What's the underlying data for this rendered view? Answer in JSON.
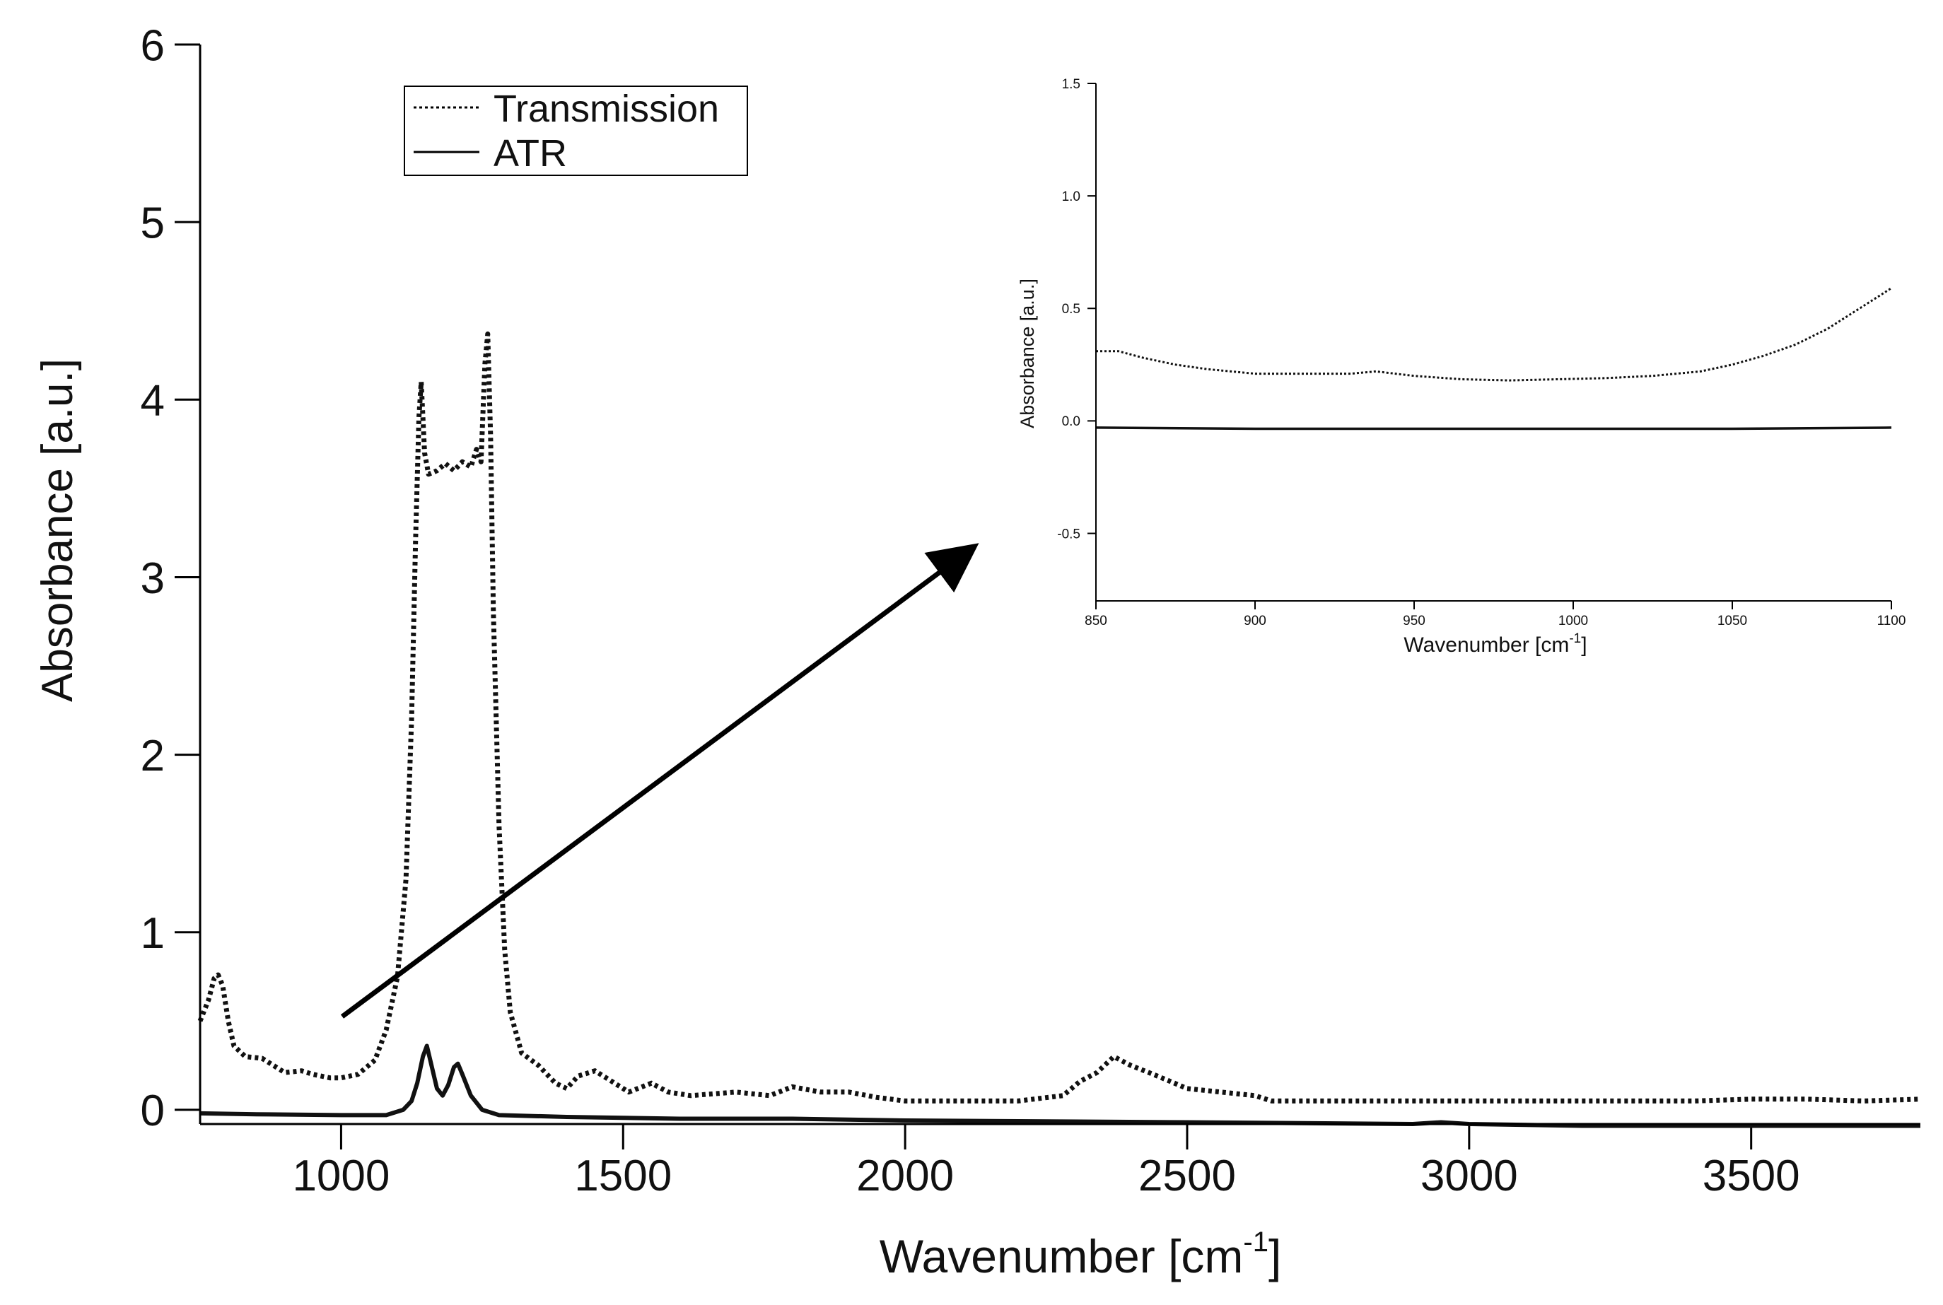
{
  "chart_data": [
    {
      "id": "main",
      "type": "line",
      "xlabel": "Wavenumber [cm",
      "xlabel_sup": "-1",
      "xlabel_suffix": "]",
      "ylabel": "Absorbance [a.u.]",
      "xlim": [
        750,
        3800
      ],
      "ylim": [
        -0.08,
        6
      ],
      "xticks": [
        1000,
        1500,
        2000,
        2500,
        3000,
        3500
      ],
      "yticks": [
        0,
        1,
        2,
        3,
        4,
        5,
        6
      ],
      "legend": {
        "placement": "top-center",
        "entries": [
          "Transmission",
          "ATR"
        ]
      },
      "series": [
        {
          "name": "Transmission",
          "style": "dotted",
          "points": [
            [
              750,
              0.5
            ],
            [
              765,
              0.62
            ],
            [
              775,
              0.74
            ],
            [
              782,
              0.76
            ],
            [
              790,
              0.7
            ],
            [
              800,
              0.5
            ],
            [
              810,
              0.36
            ],
            [
              830,
              0.3
            ],
            [
              860,
              0.29
            ],
            [
              880,
              0.25
            ],
            [
              900,
              0.21
            ],
            [
              930,
              0.22
            ],
            [
              950,
              0.2
            ],
            [
              980,
              0.18
            ],
            [
              1000,
              0.18
            ],
            [
              1030,
              0.2
            ],
            [
              1060,
              0.28
            ],
            [
              1080,
              0.45
            ],
            [
              1100,
              0.75
            ],
            [
              1115,
              1.3
            ],
            [
              1125,
              2.2
            ],
            [
              1132,
              3.2
            ],
            [
              1138,
              3.9
            ],
            [
              1142,
              4.1
            ],
            [
              1148,
              3.7
            ],
            [
              1155,
              3.58
            ],
            [
              1170,
              3.6
            ],
            [
              1185,
              3.64
            ],
            [
              1200,
              3.6
            ],
            [
              1215,
              3.65
            ],
            [
              1230,
              3.62
            ],
            [
              1240,
              3.72
            ],
            [
              1248,
              3.65
            ],
            [
              1255,
              4.2
            ],
            [
              1260,
              4.37
            ],
            [
              1265,
              3.8
            ],
            [
              1270,
              2.8
            ],
            [
              1280,
              1.6
            ],
            [
              1290,
              0.9
            ],
            [
              1300,
              0.55
            ],
            [
              1320,
              0.32
            ],
            [
              1350,
              0.25
            ],
            [
              1380,
              0.15
            ],
            [
              1400,
              0.12
            ],
            [
              1420,
              0.19
            ],
            [
              1450,
              0.22
            ],
            [
              1480,
              0.16
            ],
            [
              1510,
              0.1
            ],
            [
              1550,
              0.15
            ],
            [
              1580,
              0.1
            ],
            [
              1620,
              0.08
            ],
            [
              1700,
              0.1
            ],
            [
              1760,
              0.08
            ],
            [
              1800,
              0.13
            ],
            [
              1850,
              0.1
            ],
            [
              1900,
              0.1
            ],
            [
              1950,
              0.07
            ],
            [
              2000,
              0.05
            ],
            [
              2100,
              0.05
            ],
            [
              2200,
              0.05
            ],
            [
              2280,
              0.08
            ],
            [
              2310,
              0.16
            ],
            [
              2340,
              0.21
            ],
            [
              2370,
              0.3
            ],
            [
              2400,
              0.25
            ],
            [
              2440,
              0.2
            ],
            [
              2470,
              0.16
            ],
            [
              2500,
              0.12
            ],
            [
              2560,
              0.1
            ],
            [
              2620,
              0.08
            ],
            [
              2650,
              0.05
            ],
            [
              2800,
              0.05
            ],
            [
              3000,
              0.05
            ],
            [
              3200,
              0.05
            ],
            [
              3400,
              0.05
            ],
            [
              3500,
              0.06
            ],
            [
              3600,
              0.06
            ],
            [
              3700,
              0.05
            ],
            [
              3800,
              0.06
            ]
          ]
        },
        {
          "name": "ATR",
          "style": "solid",
          "points": [
            [
              750,
              -0.02
            ],
            [
              850,
              -0.025
            ],
            [
              1000,
              -0.03
            ],
            [
              1080,
              -0.03
            ],
            [
              1110,
              0.0
            ],
            [
              1125,
              0.05
            ],
            [
              1135,
              0.15
            ],
            [
              1145,
              0.3
            ],
            [
              1152,
              0.36
            ],
            [
              1158,
              0.28
            ],
            [
              1170,
              0.12
            ],
            [
              1180,
              0.08
            ],
            [
              1190,
              0.14
            ],
            [
              1200,
              0.24
            ],
            [
              1207,
              0.26
            ],
            [
              1215,
              0.2
            ],
            [
              1230,
              0.08
            ],
            [
              1250,
              0.0
            ],
            [
              1280,
              -0.03
            ],
            [
              1400,
              -0.04
            ],
            [
              1600,
              -0.05
            ],
            [
              1800,
              -0.05
            ],
            [
              2000,
              -0.06
            ],
            [
              2500,
              -0.07
            ],
            [
              2900,
              -0.08
            ],
            [
              2950,
              -0.07
            ],
            [
              3000,
              -0.08
            ],
            [
              3200,
              -0.09
            ],
            [
              3500,
              -0.09
            ],
            [
              3800,
              -0.09
            ]
          ]
        }
      ]
    },
    {
      "id": "inset",
      "type": "line",
      "xlabel": "Wavenumber [cm",
      "xlabel_sup": "-1",
      "xlabel_suffix": "]",
      "ylabel": "Absorbance [a.u.]",
      "xlim": [
        850,
        1100
      ],
      "ylim": [
        -0.8,
        1.5
      ],
      "xticks": [
        850,
        900,
        950,
        1000,
        1050,
        1100
      ],
      "yticks": [
        "-0.5",
        "0.0",
        "0.5",
        "1.0",
        "1.5"
      ],
      "series": [
        {
          "name": "Transmission",
          "style": "dotted",
          "points": [
            [
              850,
              0.31
            ],
            [
              857,
              0.31
            ],
            [
              865,
              0.28
            ],
            [
              875,
              0.25
            ],
            [
              885,
              0.23
            ],
            [
              900,
              0.21
            ],
            [
              915,
              0.21
            ],
            [
              930,
              0.21
            ],
            [
              938,
              0.22
            ],
            [
              950,
              0.2
            ],
            [
              965,
              0.185
            ],
            [
              980,
              0.18
            ],
            [
              995,
              0.185
            ],
            [
              1010,
              0.19
            ],
            [
              1025,
              0.2
            ],
            [
              1040,
              0.22
            ],
            [
              1050,
              0.25
            ],
            [
              1060,
              0.29
            ],
            [
              1070,
              0.34
            ],
            [
              1080,
              0.41
            ],
            [
              1090,
              0.5
            ],
            [
              1100,
              0.59
            ]
          ]
        },
        {
          "name": "ATR",
          "style": "solid",
          "points": [
            [
              850,
              -0.03
            ],
            [
              900,
              -0.035
            ],
            [
              950,
              -0.035
            ],
            [
              1000,
              -0.035
            ],
            [
              1050,
              -0.035
            ],
            [
              1100,
              -0.03
            ]
          ]
        }
      ]
    }
  ]
}
